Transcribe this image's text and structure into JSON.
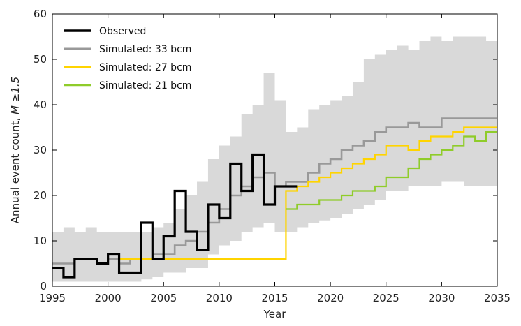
{
  "chart_data": {
    "type": "line",
    "xlabel": "Year",
    "ylabel_prefix": "Annual event count, ",
    "ylabel_math": "M ≥1.5",
    "xlim": [
      1995,
      2035
    ],
    "ylim": [
      0,
      60
    ],
    "xticks": [
      1995,
      2000,
      2005,
      2010,
      2015,
      2020,
      2025,
      2030,
      2035
    ],
    "yticks": [
      0,
      10,
      20,
      30,
      40,
      50,
      60
    ],
    "legend_position": "top-left",
    "grid": false,
    "colors": {
      "observed": "#000000",
      "sim33": "#999999",
      "sim27": "#ffd400",
      "sim21": "#8fcc2a",
      "band": "#d9d9d9"
    },
    "band": {
      "x": [
        1995,
        1996,
        1997,
        1998,
        1999,
        2000,
        2001,
        2002,
        2003,
        2004,
        2005,
        2006,
        2007,
        2008,
        2009,
        2010,
        2011,
        2012,
        2013,
        2014,
        2015,
        2016,
        2017,
        2018,
        2019,
        2020,
        2021,
        2022,
        2023,
        2024,
        2025,
        2026,
        2027,
        2028,
        2029,
        2030,
        2031,
        2032,
        2033,
        2034,
        2035
      ],
      "lower": [
        1,
        1,
        1,
        1,
        1,
        1,
        1,
        1,
        1.5,
        2,
        3,
        3,
        4,
        4,
        7,
        9,
        10,
        12,
        13,
        14,
        12,
        12,
        13,
        14,
        14.5,
        15,
        16,
        17,
        18,
        19,
        21,
        21,
        22,
        22,
        22,
        23,
        23,
        22,
        22,
        22,
        23
      ],
      "upper": [
        12,
        13,
        12,
        13,
        12,
        12,
        12,
        12,
        12,
        13,
        14,
        17,
        20,
        23,
        28,
        31,
        33,
        38,
        40,
        47,
        41,
        34,
        35,
        39,
        40,
        41,
        42,
        45,
        50,
        51,
        52,
        53,
        52,
        54,
        55,
        54,
        55,
        55,
        55,
        54,
        55
      ]
    },
    "series": [
      {
        "name": "Observed",
        "x": [
          1995,
          1996,
          1997,
          1998,
          1999,
          2000,
          2001,
          2002,
          2003,
          2004,
          2005,
          2006,
          2007,
          2008,
          2009,
          2010,
          2011,
          2012,
          2013,
          2014,
          2015,
          2016
        ],
        "y": [
          4,
          2,
          6,
          6,
          5,
          7,
          3,
          3,
          14,
          6,
          11,
          21,
          12,
          8,
          18,
          15,
          27,
          21,
          29,
          18,
          22,
          22
        ]
      },
      {
        "name": "Simulated: 33 bcm",
        "x": [
          1995,
          1996,
          1997,
          1998,
          1999,
          2000,
          2001,
          2002,
          2003,
          2004,
          2005,
          2006,
          2007,
          2008,
          2009,
          2010,
          2011,
          2012,
          2013,
          2014,
          2015,
          2016,
          2017,
          2018,
          2019,
          2020,
          2021,
          2022,
          2023,
          2024,
          2025,
          2026,
          2027,
          2028,
          2029,
          2030,
          2031,
          2032,
          2033,
          2034,
          2035
        ],
        "y": [
          5,
          5,
          6,
          6,
          5,
          6,
          5,
          6,
          6,
          7,
          7,
          9,
          10,
          12,
          14,
          17,
          20,
          22,
          24,
          25,
          22,
          23,
          23,
          25,
          27,
          28,
          30,
          31,
          32,
          34,
          35,
          35,
          36,
          35,
          35,
          37,
          37,
          37,
          37,
          37,
          37
        ]
      },
      {
        "name": "Simulated: 27 bcm",
        "x": [
          2001,
          2002,
          2016,
          2017,
          2018,
          2019,
          2020,
          2021,
          2022,
          2023,
          2024,
          2025,
          2026,
          2027,
          2028,
          2029,
          2030,
          2031,
          2032,
          2033,
          2034,
          2035
        ],
        "y": [
          6,
          6,
          21,
          22,
          23,
          24,
          25,
          26,
          27,
          28,
          29,
          31,
          31,
          30,
          32,
          33,
          33,
          34,
          35,
          35,
          35,
          35
        ]
      },
      {
        "name": "Simulated: 21 bcm",
        "x": [
          2016,
          2017,
          2018,
          2019,
          2020,
          2021,
          2022,
          2023,
          2024,
          2025,
          2026,
          2027,
          2028,
          2029,
          2030,
          2031,
          2032,
          2033,
          2034,
          2035
        ],
        "y": [
          17,
          18,
          18,
          19,
          19,
          20,
          21,
          21,
          22,
          24,
          24,
          26,
          28,
          29,
          30,
          31,
          33,
          32,
          34,
          34
        ]
      }
    ]
  }
}
